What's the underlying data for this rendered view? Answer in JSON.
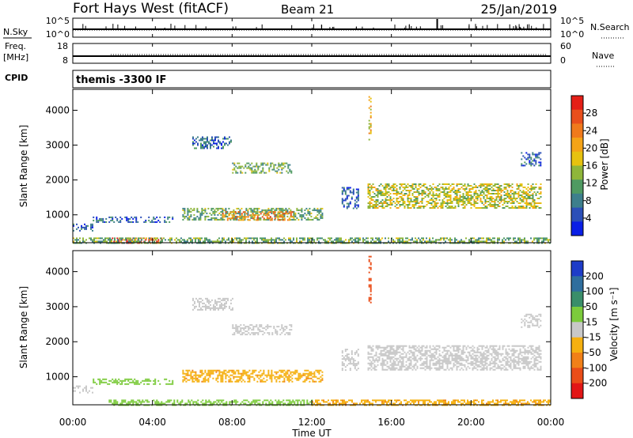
{
  "header": {
    "station": "Fort Hays West (fitACF)",
    "beam": "Beam 21",
    "date": "25/Jan/2019"
  },
  "sky_panel": {
    "left_label": "N.Sky",
    "right_label": "N.Search",
    "left_ticks": [
      "10^5",
      "10^0"
    ],
    "right_ticks": [
      "10^5",
      "10^0"
    ]
  },
  "freq_panel": {
    "left_label_1": "Freq.",
    "left_label_2": "[MHz]",
    "right_label": "Nave",
    "left_ticks": [
      "18",
      "8"
    ],
    "right_ticks": [
      "60",
      "0"
    ]
  },
  "cpid_panel": {
    "label": "CPID",
    "program": "themis -3300 IF"
  },
  "x_axis": {
    "label": "Time UT",
    "ticks": [
      "00:00",
      "04:00",
      "08:00",
      "12:00",
      "16:00",
      "20:00",
      "00:00"
    ]
  },
  "power_panel": {
    "ylabel": "Slant Range [km]",
    "colorbar_label": "Power [dB]",
    "colorbar_ticks": [
      "4",
      "8",
      "12",
      "16",
      "20",
      "24",
      "28"
    ],
    "colorbar_colors": [
      "#0a1fe6",
      "#2b4fb8",
      "#3d7f8c",
      "#4f9a62",
      "#8fb63a",
      "#e7c20f",
      "#f4a317",
      "#f07a1c",
      "#e94f1c",
      "#e41f17"
    ]
  },
  "velocity_panel": {
    "ylabel": "Slant Range [km]",
    "colorbar_label": "Velocity [m s⁻¹]",
    "colorbar_ticks": [
      "200",
      "100",
      "50",
      "15",
      "-15",
      "-50",
      "-100",
      "-200"
    ],
    "colorbar_colors": [
      "#1e3cc8",
      "#2f6e9e",
      "#3a8e6a",
      "#7ccb3c",
      "#c8c8c8",
      "#f5b010",
      "#f18018",
      "#ea4d18",
      "#e21616"
    ]
  },
  "chart_data": [
    {
      "type": "heatmap",
      "title": "Power",
      "xlabel": "Time UT",
      "ylabel": "Slant Range [km]",
      "xlim": [
        0,
        24
      ],
      "ylim": [
        200,
        4600
      ],
      "yticks": [
        1000,
        2000,
        3000,
        4000
      ],
      "colorbar": {
        "label": "Power [dB]",
        "range": [
          0,
          32
        ],
        "ticks": [
          4,
          8,
          12,
          16,
          20,
          24,
          28
        ]
      },
      "features": [
        {
          "t": [
            0.0,
            1.0
          ],
          "r": [
            550,
            750
          ],
          "power": 6
        },
        {
          "t": [
            1.0,
            5.0
          ],
          "r": [
            800,
            950
          ],
          "power": 6
        },
        {
          "t": [
            5.5,
            12.5
          ],
          "r": [
            850,
            1200
          ],
          "power": 12
        },
        {
          "t": [
            7.5,
            11.0
          ],
          "r": [
            850,
            1100
          ],
          "power": 24
        },
        {
          "t": [
            1.8,
            4.5
          ],
          "r": [
            200,
            350
          ],
          "power": 28
        },
        {
          "t": [
            0.0,
            24.0
          ],
          "r": [
            200,
            350
          ],
          "power": 12
        },
        {
          "t": [
            6.0,
            8.0
          ],
          "r": [
            2900,
            3250
          ],
          "power": 6
        },
        {
          "t": [
            8.0,
            11.0
          ],
          "r": [
            2200,
            2500
          ],
          "power": 12
        },
        {
          "t": [
            13.5,
            14.3
          ],
          "r": [
            1200,
            1800
          ],
          "power": 6
        },
        {
          "t": [
            14.8,
            23.5
          ],
          "r": [
            1200,
            1900
          ],
          "power": 16
        },
        {
          "t": [
            14.85,
            14.95
          ],
          "r": [
            3100,
            4450
          ],
          "power": 18
        },
        {
          "t": [
            22.5,
            23.5
          ],
          "r": [
            2400,
            2800
          ],
          "power": 6
        }
      ]
    },
    {
      "type": "heatmap",
      "title": "Velocity",
      "xlabel": "Time UT",
      "ylabel": "Slant Range [km]",
      "xlim": [
        0,
        24
      ],
      "ylim": [
        200,
        4600
      ],
      "yticks": [
        1000,
        2000,
        3000,
        4000
      ],
      "colorbar": {
        "label": "Velocity [m s⁻¹]",
        "range": [
          -250,
          250
        ],
        "ticks": [
          200,
          100,
          50,
          15,
          -15,
          -50,
          -100,
          -200
        ]
      },
      "features": [
        {
          "t": [
            0.0,
            1.0
          ],
          "r": [
            550,
            750
          ],
          "velocity": 0
        },
        {
          "t": [
            1.0,
            5.0
          ],
          "r": [
            800,
            950
          ],
          "velocity": 30
        },
        {
          "t": [
            5.5,
            12.5
          ],
          "r": [
            850,
            1200
          ],
          "velocity": -40
        },
        {
          "t": [
            1.8,
            12.0
          ],
          "r": [
            200,
            350
          ],
          "velocity": 30
        },
        {
          "t": [
            12.0,
            24.0
          ],
          "r": [
            200,
            350
          ],
          "velocity": -40
        },
        {
          "t": [
            6.0,
            8.0
          ],
          "r": [
            2900,
            3250
          ],
          "velocity": 0
        },
        {
          "t": [
            8.0,
            11.0
          ],
          "r": [
            2200,
            2500
          ],
          "velocity": 0
        },
        {
          "t": [
            13.5,
            14.3
          ],
          "r": [
            1200,
            1800
          ],
          "velocity": 0
        },
        {
          "t": [
            14.8,
            23.5
          ],
          "r": [
            1200,
            1900
          ],
          "velocity": 0
        },
        {
          "t": [
            14.85,
            14.95
          ],
          "r": [
            3100,
            4450
          ],
          "velocity": -150
        },
        {
          "t": [
            22.5,
            23.5
          ],
          "r": [
            2400,
            2800
          ],
          "velocity": 0
        }
      ]
    }
  ]
}
